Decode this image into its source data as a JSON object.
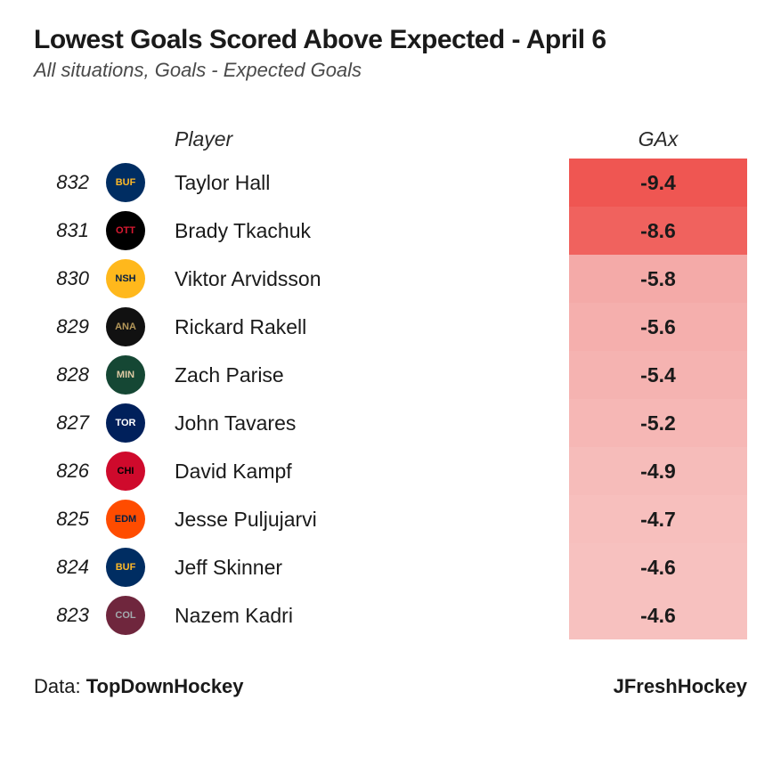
{
  "title": "Lowest Goals Scored Above Expected - April 6",
  "subtitle": "All situations, Goals - Expected Goals",
  "columns": {
    "player": "Player",
    "gax": "GAx"
  },
  "gax_color_scale": {
    "min_value": -9.4,
    "max_value": -4.6,
    "strong_color": "#ef5350",
    "light_color": "#f7bcbc"
  },
  "text_color": "#1a1a1a",
  "background_color": "#ffffff",
  "rank_fontsize": 22,
  "player_fontsize": 23,
  "gax_fontsize": 23,
  "rows": [
    {
      "rank": "832",
      "player": "Taylor Hall",
      "gax": "-9.4",
      "gax_bg": "#ef5652",
      "team": "BUF",
      "logo_bg": "#002d62",
      "logo_fg": "#fdb827",
      "logo_text": "BUF"
    },
    {
      "rank": "831",
      "player": "Brady Tkachuk",
      "gax": "-8.6",
      "gax_bg": "#f0625e",
      "team": "OTT",
      "logo_bg": "#000000",
      "logo_fg": "#da1a32",
      "logo_text": "OTT"
    },
    {
      "rank": "830",
      "player": "Viktor Arvidsson",
      "gax": "-5.8",
      "gax_bg": "#f4aaa8",
      "team": "NSH",
      "logo_bg": "#ffb81c",
      "logo_fg": "#041e42",
      "logo_text": "NSH"
    },
    {
      "rank": "829",
      "player": "Rickard Rakell",
      "gax": "-5.6",
      "gax_bg": "#f5afad",
      "team": "ANA",
      "logo_bg": "#111111",
      "logo_fg": "#b5985a",
      "logo_text": "ANA"
    },
    {
      "rank": "828",
      "player": "Zach Parise",
      "gax": "-5.4",
      "gax_bg": "#f5b3b1",
      "team": "MIN",
      "logo_bg": "#154734",
      "logo_fg": "#ddc9a3",
      "logo_text": "MIN"
    },
    {
      "rank": "827",
      "player": "John Tavares",
      "gax": "-5.2",
      "gax_bg": "#f6b7b5",
      "team": "TOR",
      "logo_bg": "#00205b",
      "logo_fg": "#ffffff",
      "logo_text": "TOR"
    },
    {
      "rank": "826",
      "player": "David Kampf",
      "gax": "-4.9",
      "gax_bg": "#f6bcba",
      "team": "CHI",
      "logo_bg": "#cf0a2c",
      "logo_fg": "#000000",
      "logo_text": "CHI"
    },
    {
      "rank": "825",
      "player": "Jesse Puljujarvi",
      "gax": "-4.7",
      "gax_bg": "#f7bfbd",
      "team": "EDM",
      "logo_bg": "#ff4c00",
      "logo_fg": "#041e42",
      "logo_text": "EDM"
    },
    {
      "rank": "824",
      "player": "Jeff Skinner",
      "gax": "-4.6",
      "gax_bg": "#f7c1bf",
      "team": "BUF",
      "logo_bg": "#002d62",
      "logo_fg": "#fdb827",
      "logo_text": "BUF"
    },
    {
      "rank": "823",
      "player": "Nazem Kadri",
      "gax": "-4.6",
      "gax_bg": "#f7c1bf",
      "team": "COL",
      "logo_bg": "#6f263d",
      "logo_fg": "#a2aaad",
      "logo_text": "COL"
    }
  ],
  "footer": {
    "data_label": "Data: ",
    "data_source": "TopDownHockey",
    "author": "JFreshHockey"
  }
}
